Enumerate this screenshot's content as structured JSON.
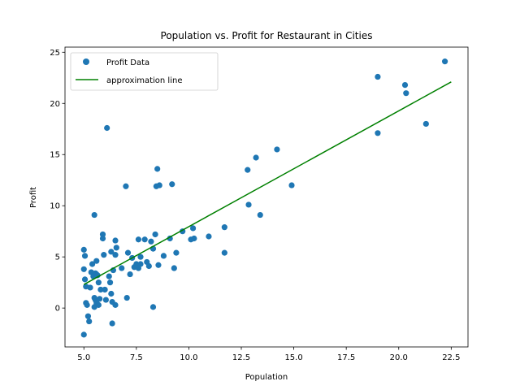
{
  "chart_data": {
    "type": "scatter",
    "title": "Population vs. Profit for Restaurant in Cities",
    "xlabel": "Population",
    "ylabel": "Profit",
    "xlim": [
      4.1,
      23.3
    ],
    "ylim": [
      -3.8,
      25.5
    ],
    "x_ticks": [
      5.0,
      7.5,
      10.0,
      12.5,
      15.0,
      17.5,
      20.0,
      22.5
    ],
    "x_tick_labels": [
      "5.0",
      "7.5",
      "10.0",
      "12.5",
      "15.0",
      "17.5",
      "20.0",
      "22.5"
    ],
    "y_ticks": [
      0,
      5,
      10,
      15,
      20,
      25
    ],
    "y_tick_labels": [
      "0",
      "5",
      "10",
      "15",
      "20",
      "25"
    ],
    "grid": false,
    "legend_position": "top-left",
    "series": [
      {
        "name": "Profit Data",
        "kind": "scatter",
        "color": "#1f77b4",
        "points": [
          [
            5.0,
            5.7
          ],
          [
            5.05,
            5.1
          ],
          [
            5.0,
            3.8
          ],
          [
            5.05,
            2.8
          ],
          [
            5.1,
            2.1
          ],
          [
            5.1,
            0.5
          ],
          [
            5.15,
            0.3
          ],
          [
            5.2,
            -0.8
          ],
          [
            5.0,
            -2.6
          ],
          [
            5.25,
            -1.3
          ],
          [
            5.3,
            2.0
          ],
          [
            5.35,
            3.5
          ],
          [
            5.4,
            4.3
          ],
          [
            5.45,
            3.1
          ],
          [
            5.5,
            9.1
          ],
          [
            5.55,
            3.4
          ],
          [
            5.6,
            4.6
          ],
          [
            5.6,
            3.3
          ],
          [
            5.65,
            3.2
          ],
          [
            5.5,
            1.0
          ],
          [
            5.55,
            0.8
          ],
          [
            5.6,
            0.5
          ],
          [
            5.5,
            0.1
          ],
          [
            5.7,
            0.3
          ],
          [
            5.75,
            0.9
          ],
          [
            5.8,
            1.8
          ],
          [
            5.7,
            2.5
          ],
          [
            5.9,
            7.2
          ],
          [
            5.9,
            6.8
          ],
          [
            5.95,
            5.2
          ],
          [
            6.0,
            1.8
          ],
          [
            6.05,
            0.8
          ],
          [
            6.1,
            17.6
          ],
          [
            6.2,
            3.1
          ],
          [
            6.25,
            2.5
          ],
          [
            6.3,
            5.5
          ],
          [
            6.3,
            1.4
          ],
          [
            6.35,
            0.6
          ],
          [
            6.35,
            -1.5
          ],
          [
            6.4,
            3.7
          ],
          [
            6.5,
            6.6
          ],
          [
            6.55,
            5.9
          ],
          [
            6.5,
            5.2
          ],
          [
            6.5,
            0.3
          ],
          [
            6.8,
            3.9
          ],
          [
            7.0,
            11.9
          ],
          [
            7.05,
            1.0
          ],
          [
            7.1,
            5.4
          ],
          [
            7.2,
            3.3
          ],
          [
            7.3,
            4.9
          ],
          [
            7.4,
            4.0
          ],
          [
            7.5,
            4.3
          ],
          [
            7.6,
            6.7
          ],
          [
            7.6,
            3.9
          ],
          [
            7.7,
            5.0
          ],
          [
            7.7,
            4.3
          ],
          [
            7.9,
            6.7
          ],
          [
            8.0,
            4.5
          ],
          [
            8.1,
            4.1
          ],
          [
            8.2,
            6.5
          ],
          [
            8.3,
            5.8
          ],
          [
            8.3,
            0.1
          ],
          [
            8.4,
            7.2
          ],
          [
            8.45,
            11.9
          ],
          [
            8.5,
            13.6
          ],
          [
            8.55,
            4.2
          ],
          [
            8.6,
            12.0
          ],
          [
            8.8,
            5.1
          ],
          [
            9.1,
            6.8
          ],
          [
            9.2,
            12.1
          ],
          [
            9.3,
            3.9
          ],
          [
            9.4,
            5.4
          ],
          [
            9.7,
            7.5
          ],
          [
            10.1,
            6.7
          ],
          [
            10.2,
            7.8
          ],
          [
            10.25,
            6.8
          ],
          [
            10.95,
            7.0
          ],
          [
            11.7,
            7.9
          ],
          [
            11.7,
            5.4
          ],
          [
            12.8,
            13.5
          ],
          [
            12.85,
            10.1
          ],
          [
            13.2,
            14.7
          ],
          [
            13.4,
            9.1
          ],
          [
            14.2,
            15.5
          ],
          [
            14.9,
            12.0
          ],
          [
            19.0,
            22.6
          ],
          [
            19.0,
            17.1
          ],
          [
            20.3,
            21.8
          ],
          [
            20.35,
            21.0
          ],
          [
            21.3,
            18.0
          ],
          [
            22.2,
            24.1
          ]
        ]
      },
      {
        "name": "approximation line",
        "kind": "line",
        "color": "#008000",
        "points": [
          [
            5.0,
            2.3
          ],
          [
            22.5,
            22.1
          ]
        ]
      }
    ]
  }
}
